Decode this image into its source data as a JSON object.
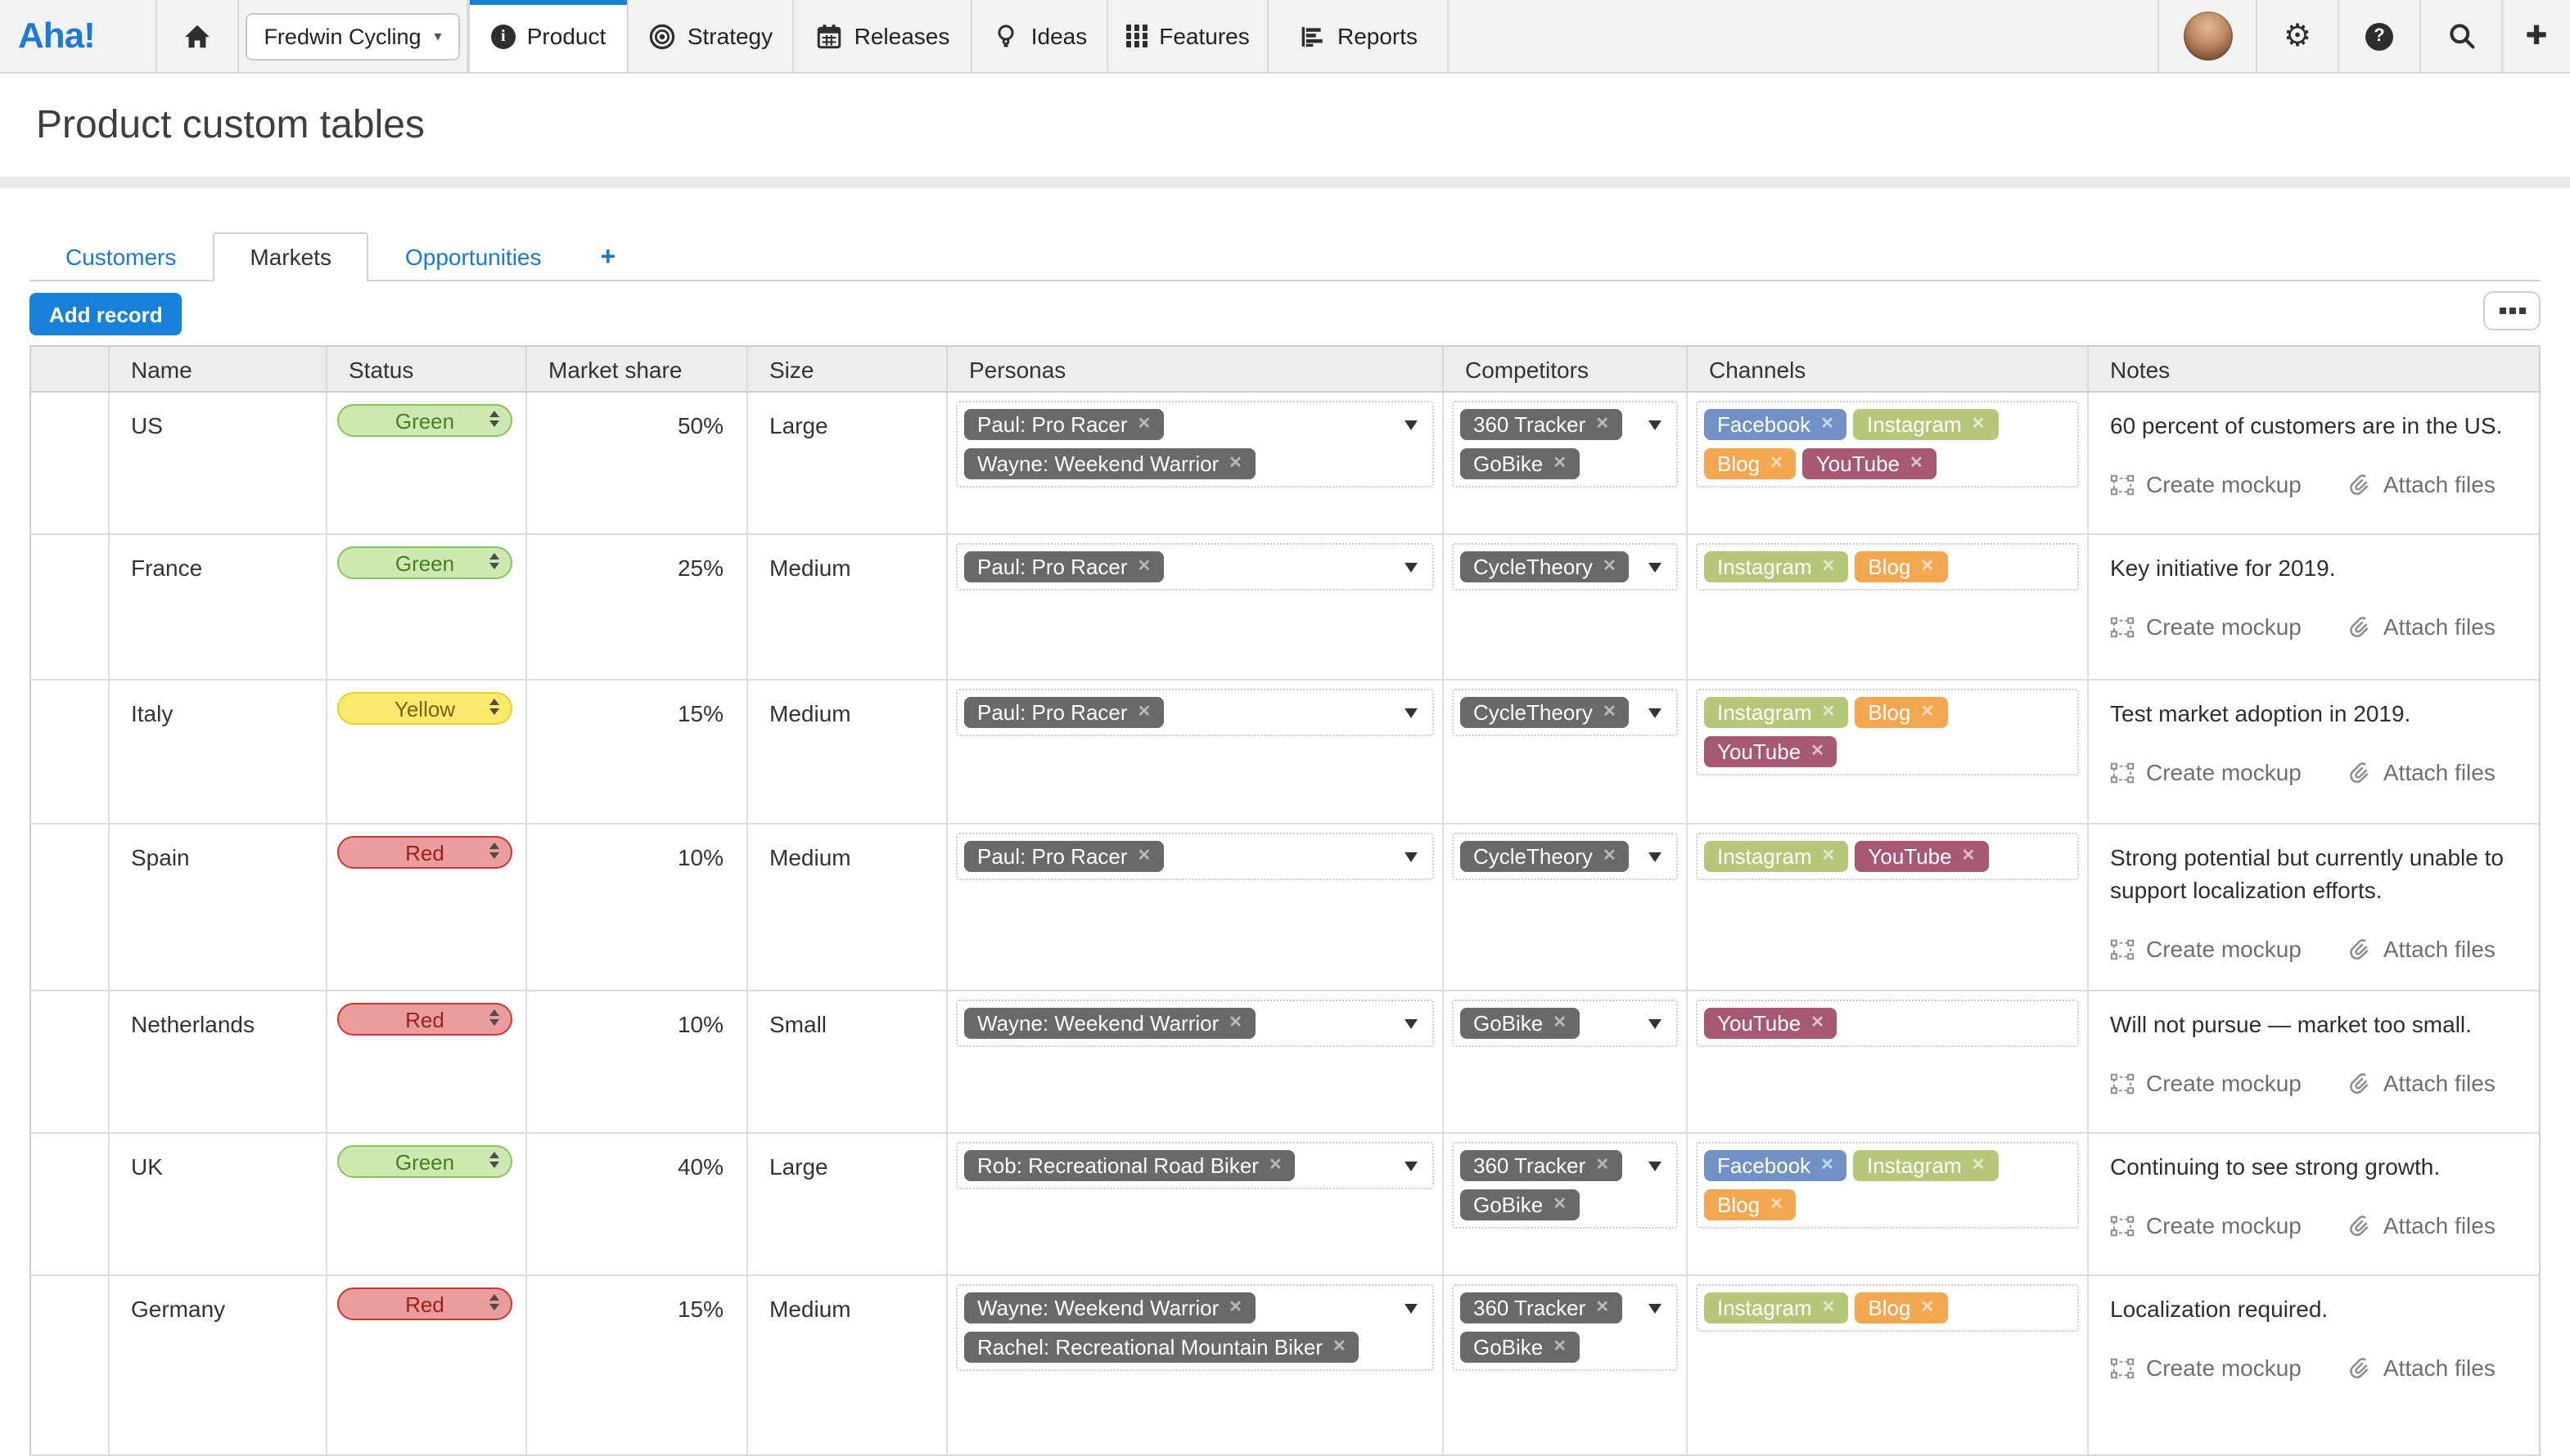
{
  "nav": {
    "logo": "Aha!",
    "product_selector": "Fredwin Cycling",
    "items": [
      {
        "label": "Product",
        "icon": "info-icon",
        "active": true
      },
      {
        "label": "Strategy",
        "icon": "target-icon"
      },
      {
        "label": "Releases",
        "icon": "calendar-icon"
      },
      {
        "label": "Ideas",
        "icon": "lightbulb-icon"
      },
      {
        "label": "Features",
        "icon": "grid-icon"
      },
      {
        "label": "Reports",
        "icon": "bar-chart-icon"
      }
    ]
  },
  "page": {
    "title": "Product custom tables"
  },
  "tabs": [
    {
      "label": "Customers"
    },
    {
      "label": "Markets",
      "active": true
    },
    {
      "label": "Opportunities"
    },
    {
      "label": "+"
    }
  ],
  "toolbar": {
    "add_record": "Add record"
  },
  "table": {
    "columns": [
      "",
      "Name",
      "Status",
      "Market share",
      "Size",
      "Personas",
      "Competitors",
      "Channels",
      "Notes"
    ],
    "row_actions": {
      "create_mockup": "Create mockup",
      "attach_files": "Attach files"
    },
    "rows": [
      {
        "name": "US",
        "status": "Green",
        "market_share": "50%",
        "size": "Large",
        "personas": [
          "Paul: Pro Racer",
          "Wayne: Weekend Warrior"
        ],
        "competitors": [
          "360 Tracker",
          "GoBike"
        ],
        "channels": [
          "Facebook",
          "Instagram",
          "Blog",
          "YouTube"
        ],
        "note": "60 percent of customers are in the US."
      },
      {
        "name": "France",
        "status": "Green",
        "market_share": "25%",
        "size": "Medium",
        "personas": [
          "Paul: Pro Racer"
        ],
        "competitors": [
          "CycleTheory"
        ],
        "channels": [
          "Instagram",
          "Blog"
        ],
        "note": "Key initiative for 2019."
      },
      {
        "name": "Italy",
        "status": "Yellow",
        "market_share": "15%",
        "size": "Medium",
        "personas": [
          "Paul: Pro Racer"
        ],
        "competitors": [
          "CycleTheory"
        ],
        "channels": [
          "Instagram",
          "Blog",
          "YouTube"
        ],
        "note": "Test market adoption in 2019."
      },
      {
        "name": "Spain",
        "status": "Red",
        "market_share": "10%",
        "size": "Medium",
        "personas": [
          "Paul: Pro Racer"
        ],
        "competitors": [
          "CycleTheory"
        ],
        "channels": [
          "Instagram",
          "YouTube"
        ],
        "note": "Strong potential but currently unable to support localization efforts."
      },
      {
        "name": "Netherlands",
        "status": "Red",
        "market_share": "10%",
        "size": "Small",
        "personas": [
          "Wayne: Weekend Warrior"
        ],
        "competitors": [
          "GoBike"
        ],
        "channels": [
          "YouTube"
        ],
        "note": "Will not pursue — market too small."
      },
      {
        "name": "UK",
        "status": "Green",
        "market_share": "40%",
        "size": "Large",
        "personas": [
          "Rob: Recreational Road Biker"
        ],
        "competitors": [
          "360 Tracker",
          "GoBike"
        ],
        "channels": [
          "Facebook",
          "Instagram",
          "Blog"
        ],
        "note": "Continuing to see strong growth."
      },
      {
        "name": "Germany",
        "status": "Red",
        "market_share": "15%",
        "size": "Medium",
        "personas": [
          "Wayne: Weekend Warrior",
          "Rachel: Recreational Mountain Biker"
        ],
        "competitors": [
          "360 Tracker",
          "GoBike"
        ],
        "channels": [
          "Instagram",
          "Blog"
        ],
        "note": "Localization required."
      }
    ]
  },
  "colors": {
    "accent_blue": "#1780d8",
    "logo_blue": "#1a7bd8",
    "status": {
      "Green": {
        "bg": "#cde9b2",
        "border": "#85c55c",
        "text": "#4a7d20"
      },
      "Yellow": {
        "bg": "#fbe96d",
        "border": "#e7d324",
        "text": "#6f6714"
      },
      "Red": {
        "bg": "#eb9d9d",
        "border": "#cf3434",
        "text": "#9a2020"
      }
    },
    "channels": {
      "Facebook": "#7191c7",
      "Instagram": "#b6c77a",
      "Blog": "#f2a750",
      "YouTube": "#a65874"
    },
    "tag_gray": "#696969"
  }
}
